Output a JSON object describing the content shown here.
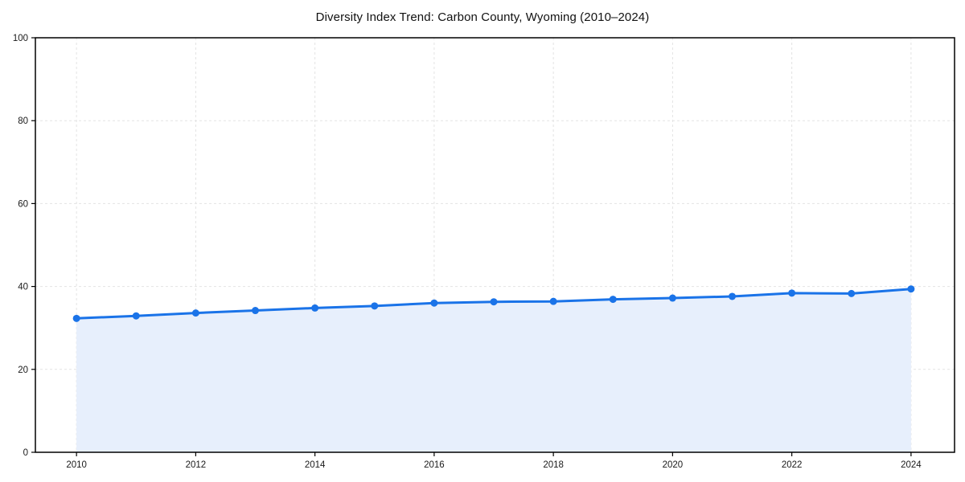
{
  "figure": {
    "background": "#ffffff"
  },
  "chart_data": {
    "type": "area",
    "title": "Diversity Index Trend: Carbon County, Wyoming (2010–2024)",
    "xlabel": "",
    "ylabel": "",
    "x": [
      2010,
      2011,
      2012,
      2013,
      2014,
      2015,
      2016,
      2017,
      2018,
      2019,
      2020,
      2021,
      2022,
      2023,
      2024
    ],
    "series": [
      {
        "name": "Diversity Index",
        "values": [
          32.3,
          32.9,
          33.6,
          34.2,
          34.8,
          35.3,
          36.0,
          36.3,
          36.4,
          36.9,
          37.2,
          37.6,
          38.4,
          38.3,
          39.4
        ]
      }
    ],
    "xticks": [
      2010,
      2012,
      2014,
      2016,
      2018,
      2020,
      2022,
      2024
    ],
    "yticks": [
      0,
      20,
      40,
      60,
      80,
      100
    ],
    "xlim": [
      2009.31,
      2024.73
    ],
    "ylim": [
      0,
      100
    ],
    "grid": true,
    "grid_style": "dashed",
    "legend": "none",
    "marker": "circle",
    "colors": {
      "line": "#1a73e8",
      "marker": "#1a73e8",
      "fill": "#e7effc",
      "grid": "#e3e3e3",
      "axis": "#000000",
      "tick_text": "#1a1a1a",
      "title_text": "#111111",
      "background": "#ffffff"
    }
  }
}
